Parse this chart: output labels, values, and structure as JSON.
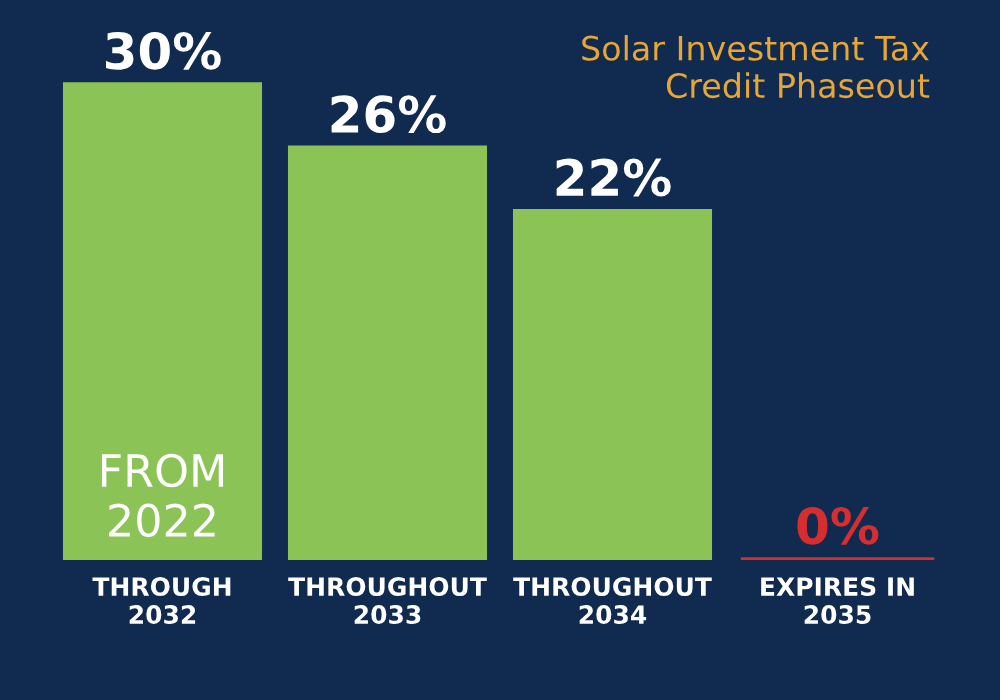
{
  "chart_data": {
    "type": "bar",
    "title": "Solar Investment Tax\nCredit Phaseout",
    "categories": [
      "THROUGH\n2032",
      "THROUGHOUT\n2033",
      "THROUGHOUT\n2034",
      "EXPIRES IN\n2035"
    ],
    "values": [
      30,
      26,
      22,
      0
    ],
    "value_labels": [
      "30%",
      "26%",
      "22%",
      "0%"
    ],
    "colors": [
      "#8cc357",
      "#8cc357",
      "#8cc357",
      "#d62e2e"
    ],
    "annotations": [
      "FROM\n2022"
    ],
    "grid": false
  }
}
